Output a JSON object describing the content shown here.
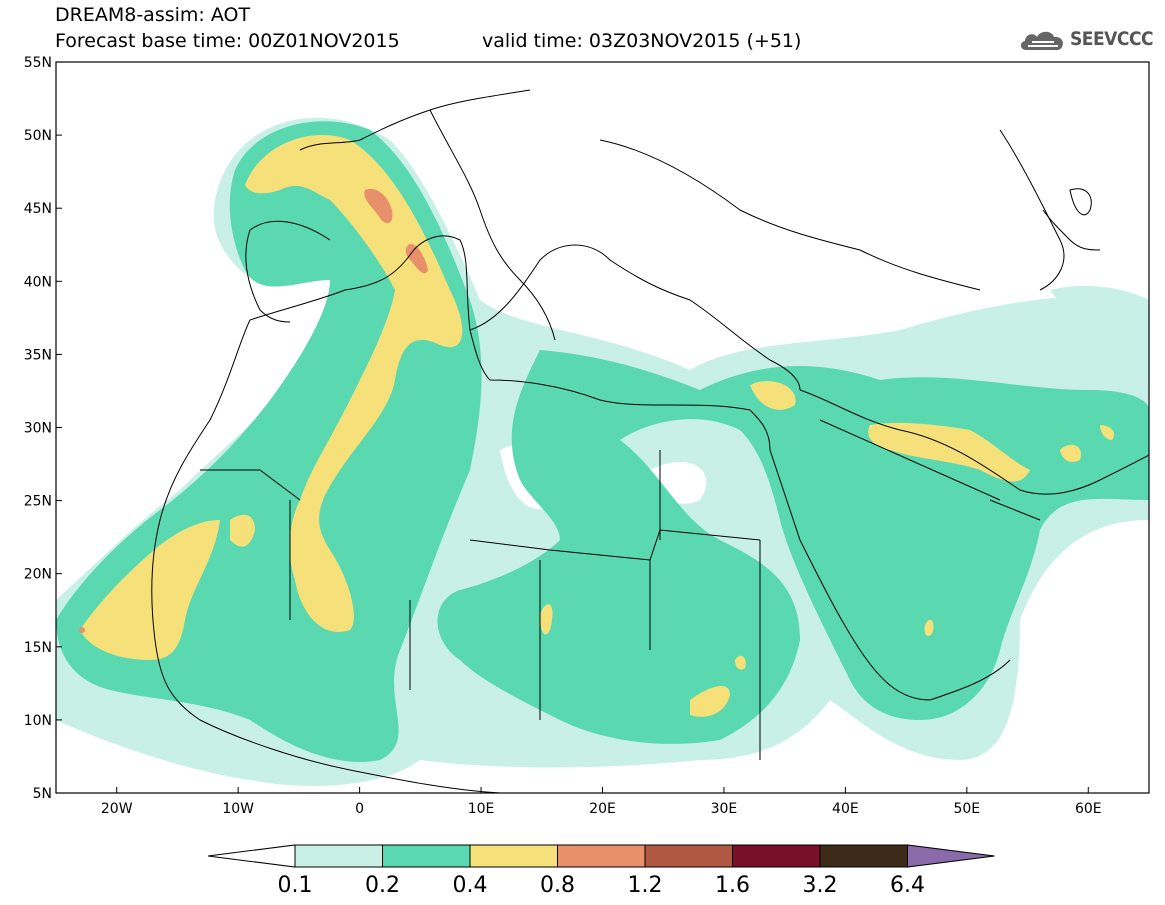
{
  "header": {
    "title": "DREAM8-assim: AOT",
    "base_time": "Forecast base time: 00Z01NOV2015",
    "valid_time": "valid time: 03Z03NOV2015 (+51)"
  },
  "logo": {
    "icon": "cloud-logo-icon",
    "text": "SEEVCCC"
  },
  "map": {
    "lon_range": [
      -25,
      65
    ],
    "lat_range": [
      5,
      55
    ],
    "lat_ticks": [
      "5N",
      "10N",
      "15N",
      "20N",
      "25N",
      "30N",
      "35N",
      "40N",
      "45N",
      "50N",
      "55N"
    ],
    "lon_ticks": [
      "20W",
      "10W",
      "0",
      "10E",
      "20E",
      "30E",
      "40E",
      "50E",
      "60E"
    ]
  },
  "legend": {
    "levels": [
      "0.1",
      "0.2",
      "0.4",
      "0.8",
      "1.2",
      "1.6",
      "3.2",
      "6.4"
    ],
    "colors": [
      "#ffffff",
      "#c9f0e7",
      "#5ad9b0",
      "#f5e07a",
      "#e8906a",
      "#b05842",
      "#7a0f2a",
      "#3d2a18",
      "#8a6aa8"
    ]
  }
}
